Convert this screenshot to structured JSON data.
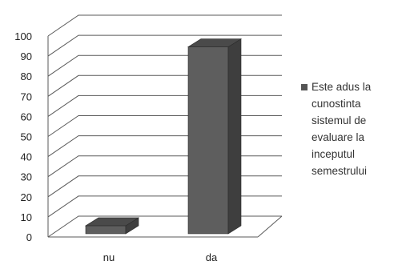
{
  "chart_data": {
    "type": "bar",
    "style": "3d",
    "categories": [
      "nu",
      "da"
    ],
    "series": [
      {
        "name": "Este adus la cunostinta sistemul de evaluare la inceputul semestrului",
        "values": [
          4,
          93
        ]
      }
    ],
    "ylim": [
      0,
      100
    ],
    "yticks": [
      0,
      10,
      20,
      30,
      40,
      50,
      60,
      70,
      80,
      90,
      100
    ],
    "grid": true,
    "legend_position": "right",
    "legend_lines": [
      "Este adus la",
      "cunostinta",
      "sistemul de",
      "evaluare la",
      "inceputul",
      "semestrului"
    ],
    "colors": {
      "bar_front": "#5e5e5e",
      "bar_side": "#3e3e3e",
      "bar_top": "#4a4a4a",
      "grid": "#5a5a5a",
      "legend_marker": "#555555"
    }
  }
}
